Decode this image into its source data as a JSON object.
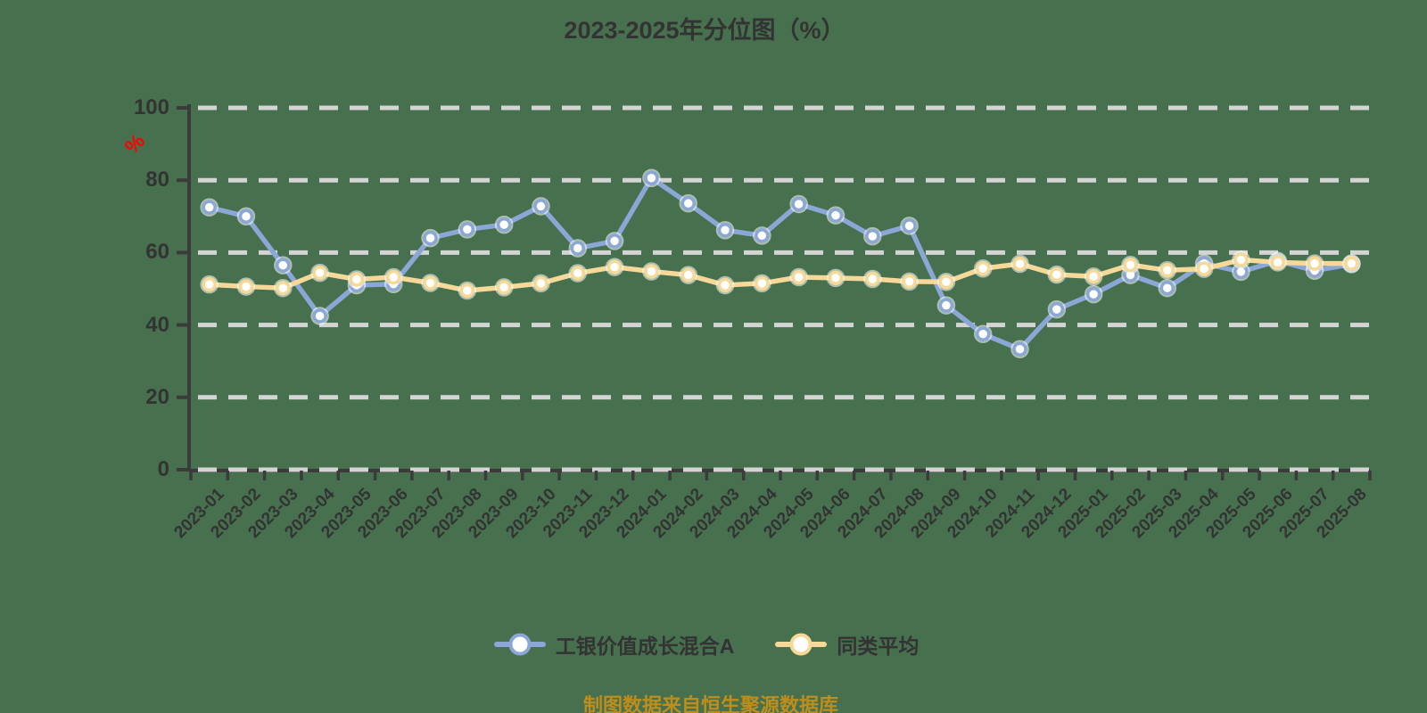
{
  "chart_data": {
    "type": "line",
    "title": "2023-2025年分位图（%）",
    "ylabel": "%",
    "xlabel": "",
    "ylim": [
      0,
      100
    ],
    "yticks": [
      0,
      20,
      40,
      60,
      80,
      100
    ],
    "grid": "horizontal-dashed",
    "legend_position": "bottom",
    "categories": [
      "2023-01",
      "2023-02",
      "2023-03",
      "2023-04",
      "2023-05",
      "2023-06",
      "2023-07",
      "2023-08",
      "2023-09",
      "2023-10",
      "2023-11",
      "2023-12",
      "2024-01",
      "2024-02",
      "2024-03",
      "2024-04",
      "2024-05",
      "2024-06",
      "2024-07",
      "2024-08",
      "2024-09",
      "2024-10",
      "2024-11",
      "2024-12",
      "2025-01",
      "2025-02",
      "2025-03",
      "2025-04",
      "2025-05",
      "2025-06",
      "2025-07",
      "2025-08"
    ],
    "series": [
      {
        "name": "工银价值成长混合A",
        "color": "#8AA7D6",
        "values": [
          72.5,
          70,
          56.5,
          42.5,
          51,
          51.3,
          64,
          66.4,
          67.7,
          72.8,
          61.2,
          63.2,
          80.6,
          73.6,
          66.2,
          64.7,
          73.4,
          70.3,
          64.5,
          67.4,
          45.4,
          37.5,
          33.3,
          44.3,
          48.5,
          53.8,
          50.2,
          57,
          54.7,
          57.7,
          55,
          56.8
        ]
      },
      {
        "name": "同类平均",
        "color": "#F6D998",
        "values": [
          51.2,
          50.6,
          50.2,
          54.4,
          52.6,
          53.2,
          51.6,
          49.5,
          50.4,
          51.5,
          54.3,
          56,
          54.8,
          53.8,
          51,
          51.5,
          53.2,
          53,
          52.7,
          52,
          51.9,
          55.6,
          56.9,
          53.9,
          53.4,
          56.6,
          55.1,
          55.5,
          58,
          57.3,
          57,
          57
        ]
      }
    ]
  },
  "footer": {
    "note": "制图数据来自恒生聚源数据库"
  },
  "colors": {
    "background": "#47704E",
    "grid": "#D4D4D4",
    "axis": "#3B3B3B",
    "text": "#333333",
    "ylabel_accent": "#FF0000",
    "footer_text": "#BE8E1D",
    "marker_fill": "#FFFFFF"
  }
}
